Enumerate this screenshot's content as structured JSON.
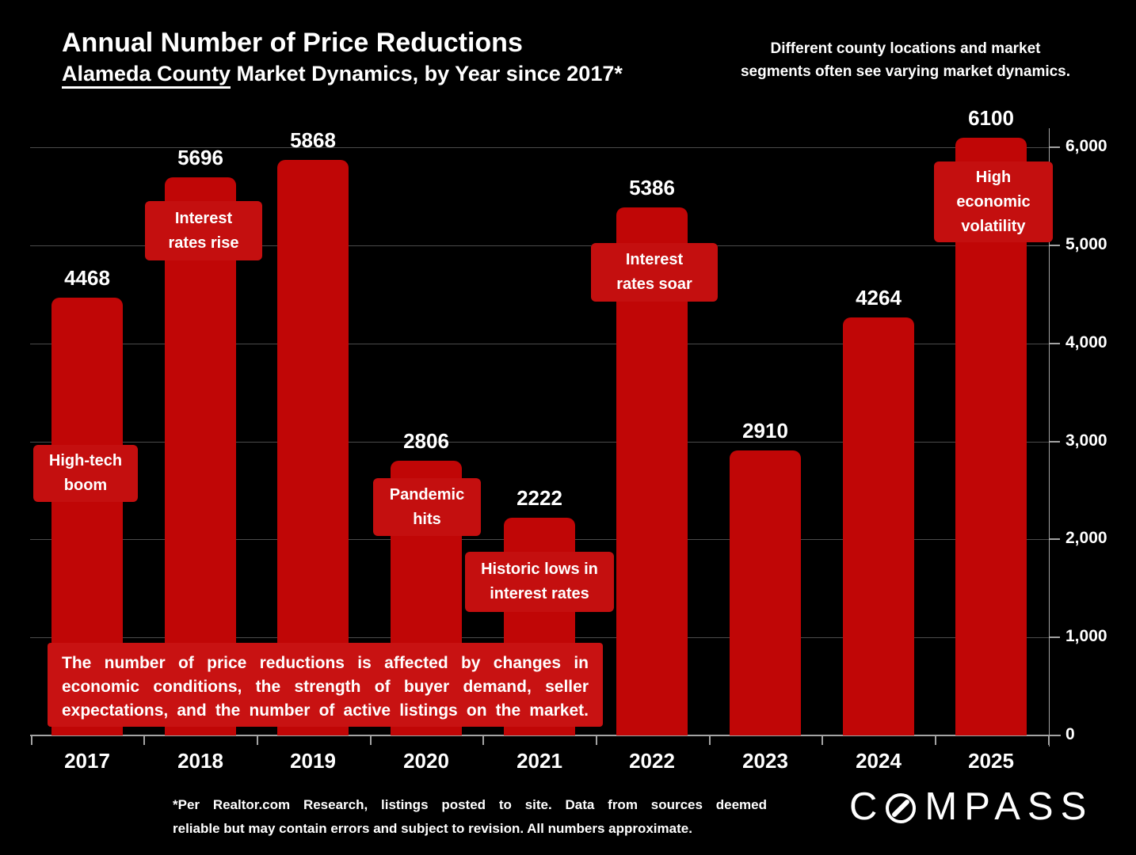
{
  "header": {
    "title": "Annual Number of Price Reductions",
    "subtitle_underline": "Alameda County",
    "subtitle_rest": " Market Dynamics, by Year since 2017*",
    "note": "Different county locations and market segments often see varying market dynamics."
  },
  "chart_data": {
    "type": "bar",
    "title": "Annual Number of Price Reductions",
    "subtitle": "Alameda County Market Dynamics, by Year since 2017*",
    "categories": [
      "2017",
      "2018",
      "2019",
      "2020",
      "2021",
      "2022",
      "2023",
      "2024",
      "2025"
    ],
    "values": [
      4468,
      5696,
      5868,
      2806,
      2222,
      5386,
      2910,
      4264,
      6100
    ],
    "xlabel": "",
    "ylabel": "",
    "ylim": [
      0,
      6000
    ],
    "ytick_interval": 1000,
    "ytick_labels": [
      "0",
      "1,000",
      "2,000",
      "3,000",
      "4,000",
      "5,000",
      "6,000"
    ],
    "grid": "horizontal",
    "axis_position": "right",
    "legend": "none",
    "bar_color": "#c00606",
    "annotation_color": "#c40f0f",
    "background_color": "#000000",
    "text_color": "#ffffff",
    "annotations": [
      {
        "year": "2017",
        "text": "High-tech\nboom"
      },
      {
        "year": "2018",
        "text": "Interest\nrates rise"
      },
      {
        "year": "2020",
        "text": "Pandemic\nhits"
      },
      {
        "year": "2021",
        "text": "Historic lows in\ninterest rates"
      },
      {
        "year": "2022",
        "text": "Interest\nrates soar"
      },
      {
        "year": "2025",
        "text": "High\neconomic\nvolatility"
      }
    ]
  },
  "callout_box": {
    "color": "#c81212",
    "lines": [
      "The number of price reductions is affected by changes in",
      "economic conditions, the strength of buyer demand, seller",
      "expectations, and the number of active listings on the market."
    ]
  },
  "footer": {
    "disclaimer_lines": [
      "*Per Realtor.com Research, listings posted to site. Data from sources deemed",
      "reliable but may contain errors and subject to revision. All numbers approximate."
    ],
    "brand": "COMPASS"
  }
}
